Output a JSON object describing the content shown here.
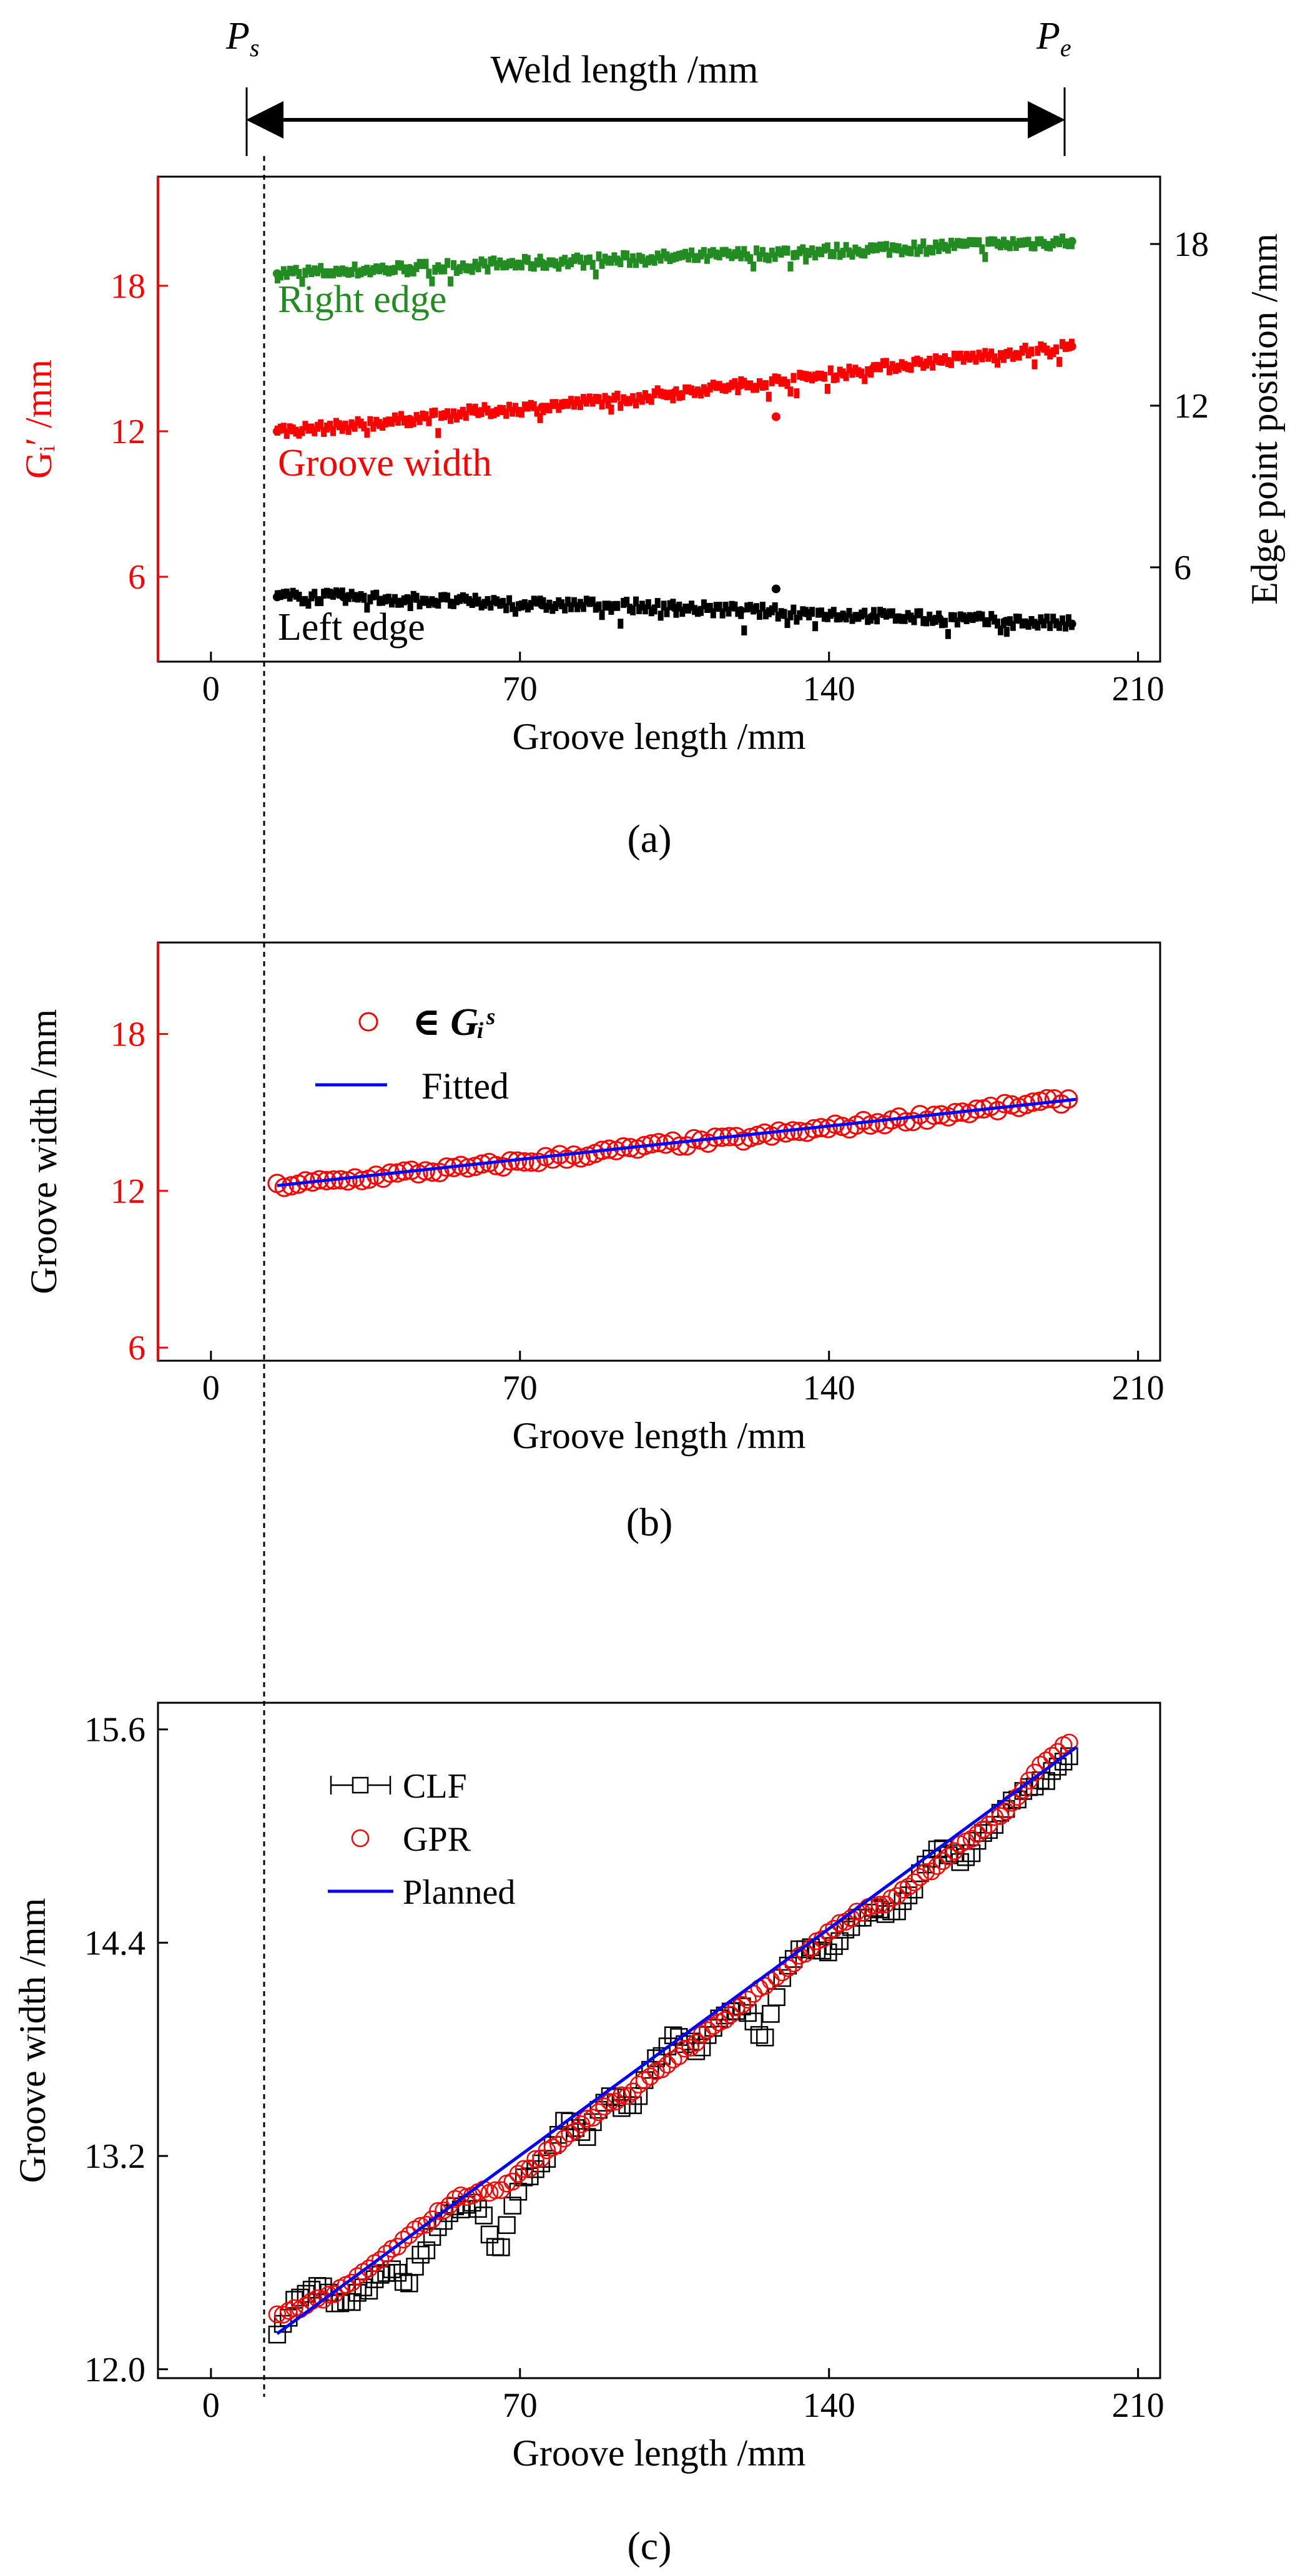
{
  "header": {
    "start_label": "P",
    "start_sub": "s",
    "end_label": "P",
    "end_sub": "e",
    "weld_label": "Weld length /mm"
  },
  "colors": {
    "red": "#ff0000",
    "green": "#228b22",
    "black": "#000000",
    "blue": "#0000ff"
  },
  "chart_data": [
    {
      "id": "a",
      "caption": "(a)",
      "type": "scatter",
      "xlabel": "Groove length /mm",
      "ylabel_left": "Gᵢ′ /mm",
      "ylabel_right": "Edge point position /mm",
      "xlim": [
        -12,
        215
      ],
      "ylim_left": [
        2.5,
        22.5
      ],
      "ylim_right": [
        2.5,
        20.5
      ],
      "xticks": [
        0,
        70,
        140,
        210
      ],
      "yticks_left": [
        6,
        12,
        18
      ],
      "yticks_right": [
        6,
        12,
        18
      ],
      "series": [
        {
          "name": "Right edge",
          "axis": "right",
          "color": "#228b22",
          "x": [
            15,
            30,
            45,
            60,
            75,
            90,
            105,
            120,
            135,
            150,
            165,
            180,
            195
          ],
          "y": [
            16.9,
            17.0,
            17.1,
            17.2,
            17.3,
            17.4,
            17.5,
            17.6,
            17.7,
            17.8,
            17.9,
            18.0,
            18.1
          ]
        },
        {
          "name": "Groove width",
          "axis": "left",
          "color": "#ff0000",
          "x": [
            15,
            30,
            45,
            60,
            75,
            90,
            105,
            120,
            135,
            150,
            165,
            180,
            195
          ],
          "y": [
            12.0,
            12.2,
            12.5,
            12.8,
            13.0,
            13.3,
            13.6,
            13.9,
            14.2,
            14.6,
            14.9,
            15.2,
            15.5
          ],
          "outlier": {
            "x": 128,
            "y": 12.6
          }
        },
        {
          "name": "Left edge",
          "axis": "right",
          "color": "#000000",
          "x": [
            15,
            30,
            45,
            60,
            75,
            90,
            105,
            120,
            135,
            150,
            165,
            180,
            195
          ],
          "y": [
            4.9,
            4.9,
            4.8,
            4.7,
            4.6,
            4.6,
            4.5,
            4.4,
            4.3,
            4.2,
            4.1,
            4.0,
            3.9
          ],
          "outlier": {
            "x": 128,
            "y": 5.2
          }
        }
      ]
    },
    {
      "id": "b",
      "caption": "(b)",
      "type": "scatter",
      "xlabel": "Groove length /mm",
      "ylabel": "Groove width /mm",
      "xlim": [
        -12,
        215
      ],
      "ylim": [
        5.5,
        21.5
      ],
      "xticks": [
        0,
        70,
        140,
        210
      ],
      "yticks": [
        6,
        12,
        18
      ],
      "legend": {
        "position": "top-left",
        "scatter_label": "∈ Gᵢˢ",
        "line_label": "Fitted"
      },
      "series": [
        {
          "name": "scatter",
          "color": "#ff0000",
          "x": [
            15,
            30,
            45,
            60,
            75,
            90,
            105,
            120,
            135,
            150,
            165,
            180,
            195
          ],
          "y": [
            12.2,
            12.4,
            12.7,
            12.9,
            13.2,
            13.5,
            13.8,
            14.0,
            14.3,
            14.6,
            14.9,
            15.2,
            15.5
          ]
        },
        {
          "name": "Fitted",
          "color": "#0000ff",
          "x": [
            15,
            196
          ],
          "y": [
            12.2,
            15.5
          ]
        }
      ]
    },
    {
      "id": "c",
      "caption": "(c)",
      "type": "scatter",
      "xlabel": "Groove length /mm",
      "ylabel": "Groove width /mm",
      "xlim": [
        -12,
        215
      ],
      "ylim": [
        11.95,
        15.75
      ],
      "xticks": [
        0,
        70,
        140,
        210
      ],
      "yticks": [
        12.0,
        13.2,
        14.4,
        15.6
      ],
      "legend": {
        "position": "top-left",
        "entries": [
          "CLF",
          "GPR",
          "Planned"
        ]
      },
      "series": [
        {
          "name": "CLF",
          "color": "#000000",
          "x": [
            15,
            20,
            25,
            30,
            35,
            40,
            45,
            50,
            55,
            60,
            65,
            70,
            75,
            80,
            85,
            90,
            95,
            100,
            105,
            110,
            115,
            120,
            125,
            130,
            135,
            140,
            145,
            150,
            155,
            160,
            165,
            170,
            175,
            180,
            185,
            190,
            195
          ],
          "y": [
            12.2,
            12.42,
            12.45,
            12.35,
            12.45,
            12.55,
            12.5,
            12.75,
            12.9,
            12.95,
            12.65,
            13.05,
            13.15,
            13.4,
            13.3,
            13.55,
            13.45,
            13.7,
            13.9,
            13.8,
            13.95,
            14.05,
            13.85,
            14.25,
            14.4,
            14.35,
            14.5,
            14.6,
            14.55,
            14.75,
            14.95,
            14.85,
            15.0,
            15.15,
            15.25,
            15.35,
            15.45
          ]
        },
        {
          "name": "GPR",
          "color": "#ff0000",
          "x": [
            15,
            20,
            25,
            30,
            35,
            40,
            45,
            50,
            55,
            60,
            65,
            70,
            75,
            80,
            85,
            90,
            95,
            100,
            105,
            110,
            115,
            120,
            125,
            130,
            135,
            140,
            145,
            150,
            155,
            160,
            165,
            170,
            175,
            180,
            185,
            190,
            195
          ],
          "y": [
            12.3,
            12.35,
            12.4,
            12.45,
            12.55,
            12.65,
            12.75,
            12.85,
            12.95,
            13.0,
            13.0,
            13.1,
            13.2,
            13.3,
            13.4,
            13.5,
            13.55,
            13.65,
            13.75,
            13.85,
            13.95,
            14.05,
            14.15,
            14.25,
            14.35,
            14.45,
            14.55,
            14.6,
            14.65,
            14.75,
            14.85,
            14.95,
            15.05,
            15.15,
            15.3,
            15.45,
            15.55
          ]
        },
        {
          "name": "Planned",
          "color": "#0000ff",
          "x": [
            15,
            196
          ],
          "y": [
            12.2,
            15.5
          ]
        }
      ]
    }
  ]
}
